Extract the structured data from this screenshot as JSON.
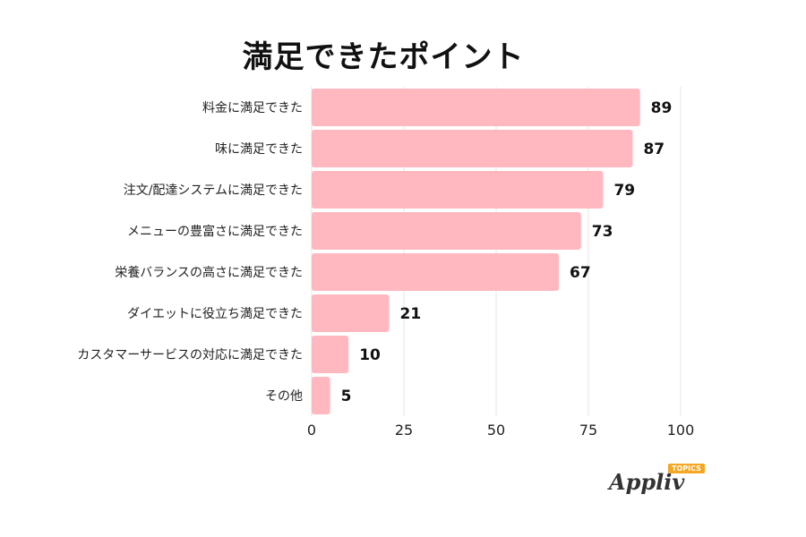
{
  "chart_data": {
    "type": "bar",
    "orientation": "horizontal",
    "title": "満足できたポイント",
    "categories": [
      "料金に満足できた",
      "味に満足できた",
      "注文/配達システムに満足できた",
      "メニューの豊富さに満足できた",
      "栄養バランスの高さに満足できた",
      "ダイエットに役立ち満足できた",
      "カスタマーサービスの対応に満足できた",
      "その他"
    ],
    "values": [
      89,
      87,
      79,
      73,
      67,
      21,
      10,
      5
    ],
    "xlim": [
      0,
      100
    ],
    "xticks": [
      0,
      25,
      50,
      75,
      100
    ],
    "grid": true,
    "bar_color": "#ffb8c0"
  },
  "logo": {
    "word": "Appliv",
    "badge": "TOPICS",
    "badge_color": "#f5a623"
  }
}
